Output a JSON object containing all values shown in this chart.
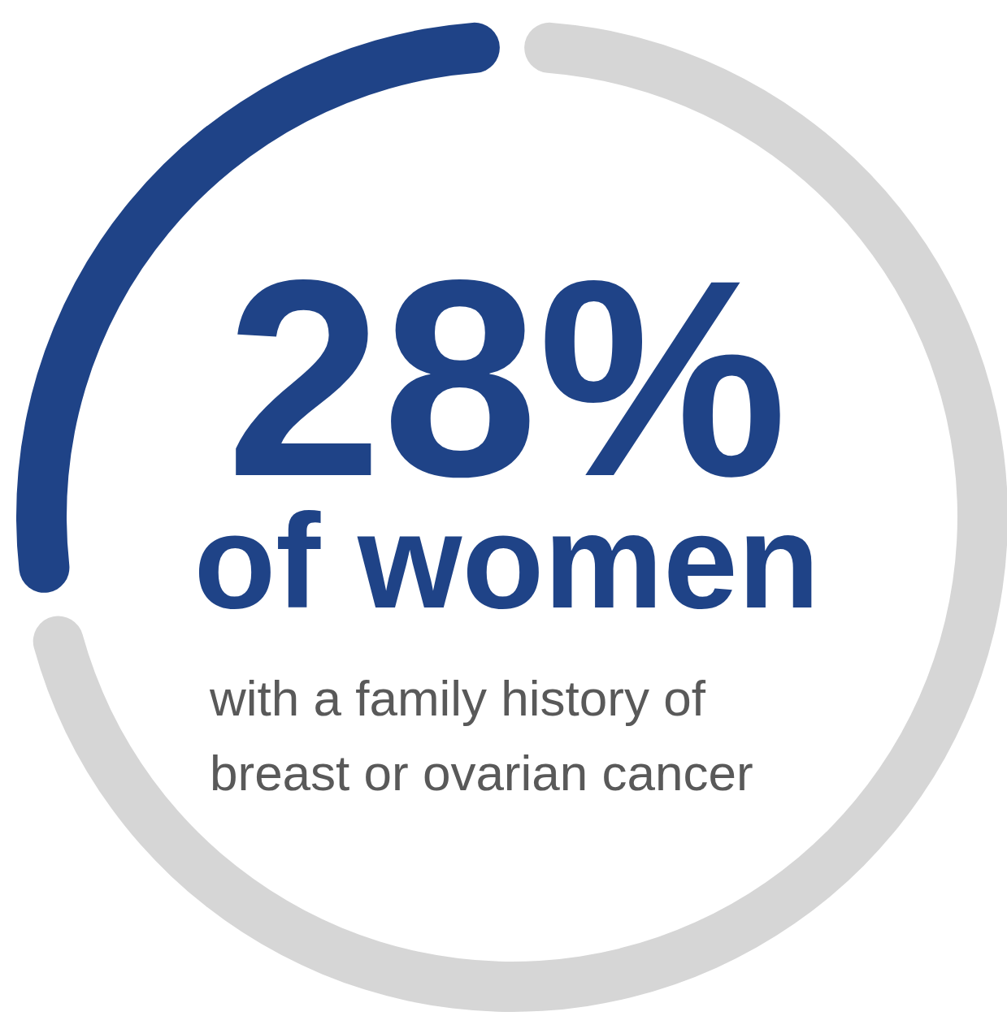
{
  "chart_data": {
    "type": "donut",
    "title": "of women",
    "subtitle": "with a family history of breast or ovarian cancer",
    "categories": [
      null,
      null
    ],
    "values": [
      28,
      72
    ],
    "colors": [
      "#1f4387",
      "#d6d6d6"
    ],
    "value_labels": [
      "28%",
      null
    ]
  }
}
